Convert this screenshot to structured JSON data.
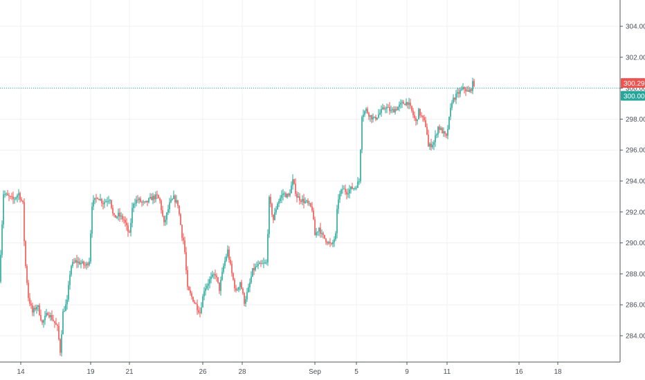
{
  "colors": {
    "up": "#26a69a",
    "down": "#ef5350",
    "grid": "#eef0f3",
    "axis": "#50535e",
    "price_line": "#26a69a",
    "last_price_badge": "#ef5350",
    "current_price_badge": "#26a69a"
  },
  "price_badges": {
    "last": "300.29",
    "current": "300.00"
  },
  "chart_data": {
    "type": "candlestick",
    "title": "",
    "xlabel": "",
    "ylabel": "",
    "grid": true,
    "legend": "none",
    "ylim": [
      282.3,
      305.7
    ],
    "y_ticks": [
      "304.00",
      "302.00",
      "300.00",
      "298.00",
      "296.00",
      "294.00",
      "292.00",
      "290.00",
      "288.00",
      "286.00",
      "284.00"
    ],
    "x_ticks": [
      "14",
      "19",
      "21",
      "26",
      "28",
      "Sep",
      "5",
      "9",
      "11",
      "16",
      "18"
    ],
    "horizontal_line": 300.0,
    "series": [
      {
        "points": [
          [
            0,
            287.5
          ],
          [
            6,
            293.2
          ],
          [
            12,
            293.0
          ],
          [
            20,
            292.8
          ],
          [
            28,
            293.2
          ],
          [
            34,
            292.5
          ],
          [
            37,
            289.0
          ],
          [
            42,
            286.5
          ],
          [
            48,
            285.5
          ],
          [
            55,
            286.0
          ],
          [
            62,
            284.8
          ],
          [
            70,
            285.5
          ],
          [
            78,
            285.0
          ],
          [
            84,
            284.5
          ],
          [
            88,
            283.0
          ],
          [
            92,
            285.5
          ],
          [
            98,
            286.2
          ],
          [
            103,
            288.5
          ],
          [
            110,
            288.8
          ],
          [
            118,
            288.7
          ],
          [
            125,
            288.5
          ],
          [
            130,
            288.9
          ],
          [
            134,
            292.5
          ],
          [
            142,
            293.0
          ],
          [
            150,
            292.6
          ],
          [
            160,
            292.9
          ],
          [
            165,
            291.6
          ],
          [
            172,
            291.8
          ],
          [
            180,
            291.5
          ],
          [
            188,
            290.5
          ],
          [
            193,
            292.6
          ],
          [
            200,
            292.8
          ],
          [
            210,
            292.5
          ],
          [
            220,
            292.9
          ],
          [
            228,
            293.0
          ],
          [
            232,
            292.7
          ],
          [
            238,
            291.2
          ],
          [
            246,
            292.5
          ],
          [
            252,
            292.9
          ],
          [
            258,
            292.5
          ],
          [
            264,
            290.5
          ],
          [
            267,
            290.0
          ],
          [
            272,
            287.0
          ],
          [
            278,
            286.5
          ],
          [
            284,
            286.0
          ],
          [
            290,
            285.5
          ],
          [
            296,
            287.0
          ],
          [
            304,
            287.6
          ],
          [
            312,
            288.0
          ],
          [
            318,
            287.0
          ],
          [
            324,
            288.5
          ],
          [
            330,
            289.5
          ],
          [
            336,
            288.0
          ],
          [
            342,
            286.8
          ],
          [
            348,
            287.5
          ],
          [
            354,
            286.2
          ],
          [
            360,
            287.0
          ],
          [
            366,
            288.2
          ],
          [
            372,
            288.5
          ],
          [
            380,
            288.6
          ],
          [
            386,
            288.7
          ],
          [
            390,
            292.8
          ],
          [
            396,
            291.5
          ],
          [
            402,
            292.6
          ],
          [
            410,
            293.2
          ],
          [
            418,
            293.0
          ],
          [
            424,
            294.0
          ],
          [
            430,
            293.0
          ],
          [
            436,
            292.8
          ],
          [
            444,
            292.6
          ],
          [
            452,
            292.2
          ],
          [
            456,
            290.5
          ],
          [
            462,
            291.0
          ],
          [
            466,
            290.5
          ],
          [
            472,
            290.2
          ],
          [
            480,
            289.8
          ],
          [
            486,
            290.5
          ],
          [
            489,
            292.8
          ],
          [
            496,
            293.5
          ],
          [
            502,
            293.3
          ],
          [
            508,
            293.5
          ],
          [
            514,
            293.6
          ],
          [
            520,
            294.0
          ],
          [
            524,
            298.3
          ],
          [
            530,
            298.6
          ],
          [
            536,
            298.2
          ],
          [
            542,
            298.0
          ],
          [
            550,
            298.4
          ],
          [
            558,
            298.8
          ],
          [
            566,
            298.5
          ],
          [
            574,
            298.7
          ],
          [
            582,
            299.0
          ],
          [
            590,
            299.1
          ],
          [
            596,
            298.5
          ],
          [
            602,
            297.8
          ],
          [
            606,
            298.5
          ],
          [
            612,
            298.0
          ],
          [
            617,
            297.5
          ],
          [
            620,
            296.2
          ],
          [
            628,
            296.5
          ],
          [
            634,
            297.5
          ],
          [
            640,
            297.2
          ],
          [
            646,
            296.8
          ],
          [
            650,
            298.0
          ],
          [
            654,
            299.2
          ],
          [
            660,
            299.5
          ],
          [
            666,
            299.8
          ],
          [
            672,
            300.0
          ],
          [
            678,
            299.7
          ],
          [
            682,
            300.0
          ],
          [
            684,
            300.29
          ]
        ]
      }
    ]
  }
}
